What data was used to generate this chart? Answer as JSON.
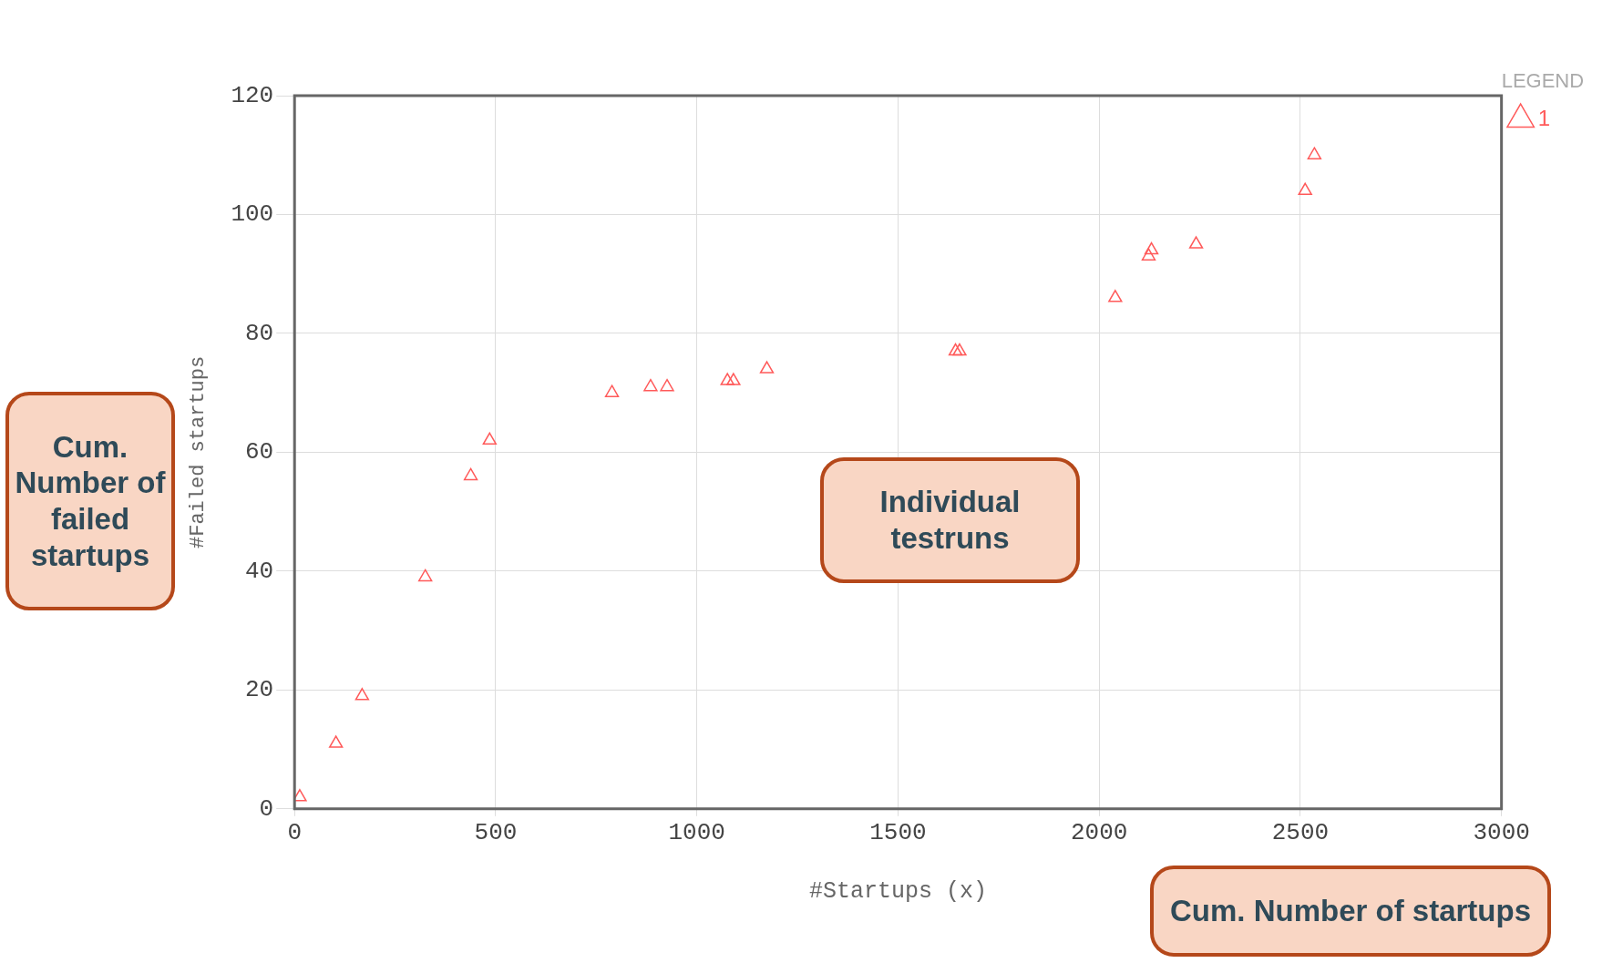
{
  "chart_data": {
    "type": "scatter",
    "xlabel": "#Startups (x)",
    "ylabel": "#Failed startups",
    "legend_title": "LEGEND",
    "x": [
      13,
      103,
      168,
      325,
      438,
      485,
      789,
      885,
      926,
      1076,
      1091,
      1174,
      1643,
      1653,
      2040,
      2123,
      2130,
      2241,
      2512,
      2535
    ],
    "series": [
      {
        "name": "1",
        "color": "#ff5a5a",
        "values": [
          2,
          11,
          19,
          39,
          56,
          62,
          70,
          71,
          71,
          72,
          72,
          74,
          77,
          77,
          86,
          93,
          94,
          95,
          104,
          110
        ]
      }
    ],
    "xlim": [
      0,
      3000
    ],
    "xticks": [
      0,
      500,
      1000,
      1500,
      2000,
      2500,
      3000
    ],
    "ylim": [
      0,
      120
    ],
    "yticks": [
      0,
      20,
      40,
      60,
      80,
      100,
      120
    ],
    "grid": true,
    "legend": "top right",
    "marker": "triangle",
    "annotations": [
      "Cum. Number of failed startups",
      "Individual testruns",
      "Cum. Number of startups"
    ]
  }
}
